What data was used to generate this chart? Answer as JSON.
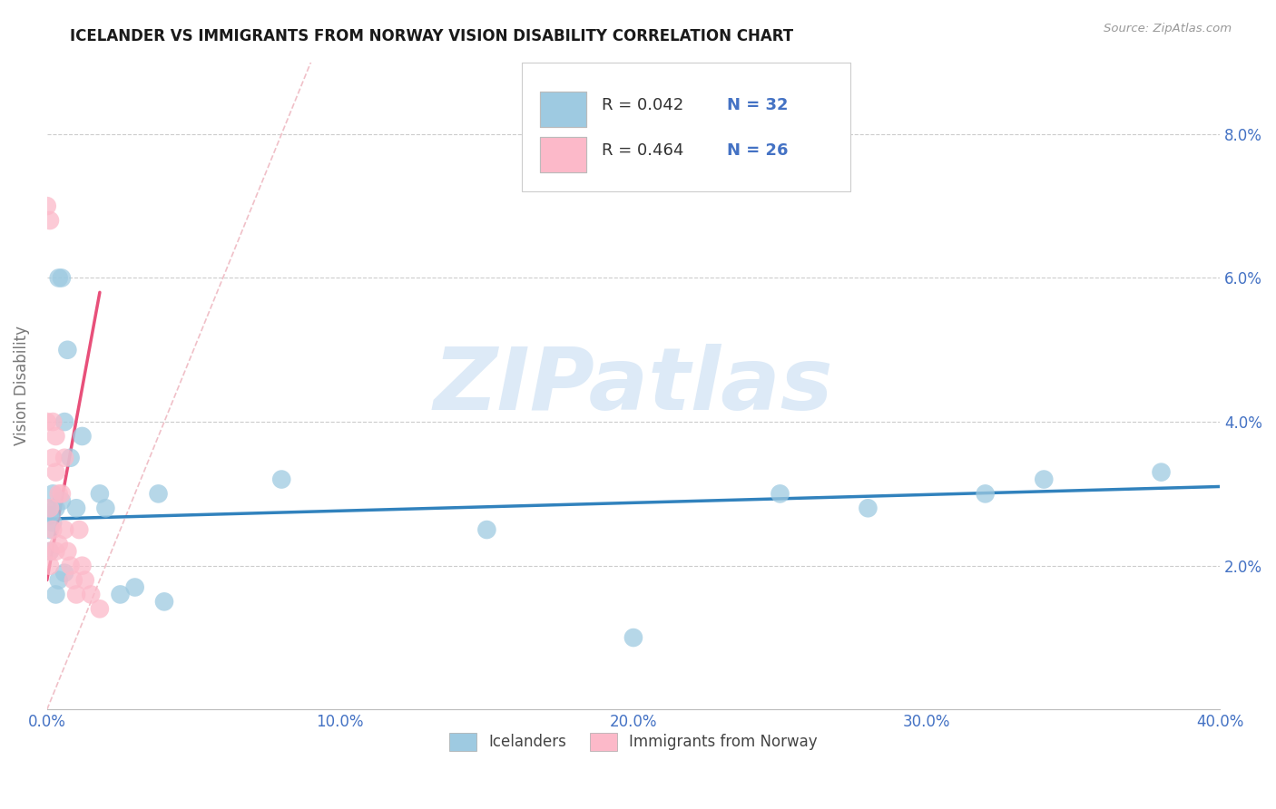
{
  "title": "ICELANDER VS IMMIGRANTS FROM NORWAY VISION DISABILITY CORRELATION CHART",
  "source": "Source: ZipAtlas.com",
  "ylabel": "Vision Disability",
  "xlim": [
    0.0,
    0.4
  ],
  "ylim": [
    0.0,
    0.09
  ],
  "xticks": [
    0.0,
    0.1,
    0.2,
    0.3,
    0.4
  ],
  "xticklabels": [
    "0.0%",
    "10.0%",
    "20.0%",
    "30.0%",
    "40.0%"
  ],
  "yticks_right": [
    0.02,
    0.04,
    0.06,
    0.08
  ],
  "yticklabels_right": [
    "2.0%",
    "4.0%",
    "6.0%",
    "8.0%"
  ],
  "legend_r1": "R = 0.042",
  "legend_n1": "N = 32",
  "legend_r2": "R = 0.464",
  "legend_n2": "N = 26",
  "color_blue": "#9ecae1",
  "color_pink": "#fcb9c9",
  "color_blue_line": "#3182bd",
  "color_pink_line": "#e8507a",
  "color_diag_line": "#f0c0c8",
  "color_axis_blue": "#4472c4",
  "color_grid": "#cccccc",
  "background_color": "#ffffff",
  "watermark_text": "ZIPatlas",
  "watermark_color": "#ddeaf7",
  "ice_x": [
    0.0,
    0.001,
    0.001,
    0.001,
    0.002,
    0.002,
    0.003,
    0.003,
    0.004,
    0.004,
    0.005,
    0.005,
    0.006,
    0.006,
    0.007,
    0.008,
    0.01,
    0.012,
    0.018,
    0.02,
    0.025,
    0.03,
    0.038,
    0.04,
    0.08,
    0.15,
    0.2,
    0.25,
    0.28,
    0.32,
    0.34,
    0.38
  ],
  "ice_y": [
    0.028,
    0.027,
    0.025,
    0.022,
    0.026,
    0.03,
    0.028,
    0.016,
    0.018,
    0.06,
    0.06,
    0.029,
    0.019,
    0.04,
    0.05,
    0.035,
    0.028,
    0.038,
    0.03,
    0.028,
    0.016,
    0.017,
    0.03,
    0.015,
    0.032,
    0.025,
    0.01,
    0.03,
    0.028,
    0.03,
    0.032,
    0.033
  ],
  "nor_x": [
    0.0,
    0.0,
    0.001,
    0.001,
    0.001,
    0.001,
    0.002,
    0.002,
    0.002,
    0.003,
    0.003,
    0.003,
    0.004,
    0.004,
    0.005,
    0.006,
    0.006,
    0.007,
    0.008,
    0.009,
    0.01,
    0.011,
    0.012,
    0.013,
    0.015,
    0.018
  ],
  "nor_y": [
    0.04,
    0.07,
    0.068,
    0.028,
    0.022,
    0.02,
    0.04,
    0.035,
    0.025,
    0.038,
    0.033,
    0.022,
    0.03,
    0.023,
    0.03,
    0.035,
    0.025,
    0.022,
    0.02,
    0.018,
    0.016,
    0.025,
    0.02,
    0.018,
    0.016,
    0.014
  ],
  "blue_line_x": [
    0.0,
    0.4
  ],
  "blue_line_y": [
    0.0265,
    0.031
  ],
  "pink_line_x": [
    0.0,
    0.018
  ],
  "pink_line_y": [
    0.018,
    0.058
  ]
}
